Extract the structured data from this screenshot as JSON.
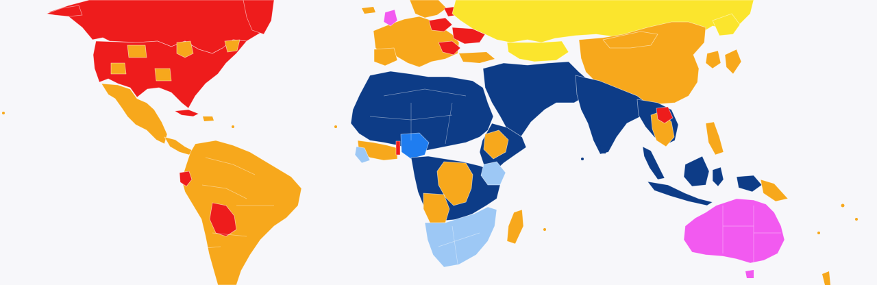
{
  "map": {
    "colors": {
      "background": "#f7f7fa",
      "red": "#ee1c1c",
      "orange": "#f7a81c",
      "yellow": "#fbe52d",
      "dark_blue": "#0d3c87",
      "light_blue": "#9dc8f5",
      "blue": "#1f7df0",
      "magenta": "#f25af0"
    }
  }
}
